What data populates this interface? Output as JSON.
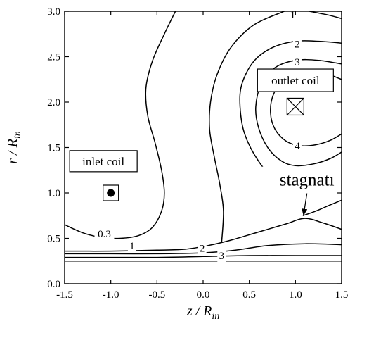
{
  "chart_data": {
    "type": "contour",
    "title": "",
    "xlabel": "z / R",
    "xlabel_sub": "in",
    "ylabel": "r / R",
    "ylabel_sub": "in",
    "xlim": [
      -1.5,
      1.5
    ],
    "ylim": [
      0.0,
      3.0
    ],
    "x_ticks": [
      -1.5,
      -1.0,
      -0.5,
      0.0,
      0.5,
      1.0,
      1.5
    ],
    "x_tick_labels": [
      "-1.5",
      "-1.0",
      "-0.5",
      "0.0",
      "0.5",
      "1.0",
      "1.5"
    ],
    "y_ticks": [
      0.0,
      0.5,
      1.0,
      1.5,
      2.0,
      2.5,
      3.0
    ],
    "y_tick_labels": [
      "0.0",
      "0.5",
      "1.0",
      "1.5",
      "2.0",
      "2.5",
      "3.0"
    ],
    "grid": false,
    "contours": [
      {
        "level": "0.3",
        "points": [
          [
            -1.5,
            0.65
          ],
          [
            -1.3,
            0.56
          ],
          [
            -1.1,
            0.51
          ],
          [
            -0.9,
            0.5
          ],
          [
            -0.7,
            0.53
          ],
          [
            -0.55,
            0.62
          ],
          [
            -0.45,
            0.8
          ],
          [
            -0.42,
            1.0
          ],
          [
            -0.45,
            1.25
          ],
          [
            -0.52,
            1.55
          ],
          [
            -0.6,
            1.85
          ],
          [
            -0.62,
            2.15
          ],
          [
            -0.55,
            2.45
          ],
          [
            -0.42,
            2.75
          ],
          [
            -0.3,
            3.0
          ]
        ]
      },
      {
        "level": "1",
        "points": [
          [
            -1.5,
            0.36
          ],
          [
            -1.0,
            0.36
          ],
          [
            -0.5,
            0.37
          ],
          [
            -0.2,
            0.38
          ],
          [
            0.05,
            0.42
          ],
          [
            0.3,
            0.48
          ],
          [
            0.6,
            0.57
          ],
          [
            0.9,
            0.66
          ],
          [
            1.1,
            0.72
          ],
          [
            1.3,
            0.67
          ],
          [
            1.5,
            0.6
          ]
        ]
      },
      {
        "level": "1",
        "points": [
          [
            0.2,
            0.45
          ],
          [
            0.22,
            0.8
          ],
          [
            0.18,
            1.1
          ],
          [
            0.12,
            1.4
          ],
          [
            0.07,
            1.7
          ],
          [
            0.08,
            2.0
          ],
          [
            0.15,
            2.3
          ],
          [
            0.3,
            2.6
          ],
          [
            0.55,
            2.85
          ],
          [
            0.88,
            3.0
          ]
        ]
      },
      {
        "level": "1",
        "points": [
          [
            1.08,
            0.75
          ],
          [
            1.22,
            0.8
          ],
          [
            1.38,
            0.87
          ],
          [
            1.5,
            0.92
          ]
        ]
      },
      {
        "level": "1",
        "points": [
          [
            1.15,
            3.0
          ],
          [
            1.35,
            2.96
          ],
          [
            1.5,
            2.92
          ]
        ]
      },
      {
        "level": "2",
        "points": [
          [
            -1.5,
            0.33
          ],
          [
            -1.0,
            0.33
          ],
          [
            -0.5,
            0.33
          ],
          [
            0.0,
            0.34
          ],
          [
            0.35,
            0.37
          ],
          [
            0.7,
            0.42
          ],
          [
            1.1,
            0.44
          ],
          [
            1.5,
            0.43
          ]
        ]
      },
      {
        "level": "2",
        "points": [
          [
            1.5,
            2.65
          ],
          [
            1.25,
            2.67
          ],
          [
            1.0,
            2.67
          ],
          [
            0.75,
            2.6
          ],
          [
            0.55,
            2.45
          ],
          [
            0.42,
            2.2
          ],
          [
            0.4,
            1.95
          ],
          [
            0.45,
            1.65
          ],
          [
            0.6,
            1.35
          ],
          [
            0.8,
            1.12
          ],
          [
            1.0,
            1.03
          ],
          [
            1.2,
            1.03
          ],
          [
            1.38,
            1.08
          ],
          [
            1.5,
            1.15
          ]
        ]
      },
      {
        "level": "3",
        "points": [
          [
            -1.5,
            0.29
          ],
          [
            -0.5,
            0.29
          ],
          [
            0.0,
            0.3
          ],
          [
            0.5,
            0.31
          ],
          [
            1.0,
            0.31
          ],
          [
            1.5,
            0.31
          ]
        ]
      },
      {
        "level": "3",
        "points": [
          [
            1.5,
            2.42
          ],
          [
            1.25,
            2.46
          ],
          [
            1.0,
            2.46
          ],
          [
            0.78,
            2.38
          ],
          [
            0.63,
            2.2
          ],
          [
            0.57,
            1.95
          ],
          [
            0.6,
            1.72
          ],
          [
            0.7,
            1.5
          ],
          [
            0.85,
            1.35
          ],
          [
            1.0,
            1.3
          ],
          [
            1.2,
            1.32
          ],
          [
            1.38,
            1.38
          ],
          [
            1.5,
            1.45
          ]
        ]
      },
      {
        "level": "4",
        "points": [
          [
            1.5,
            2.25
          ],
          [
            1.3,
            2.32
          ],
          [
            1.05,
            2.33
          ],
          [
            0.87,
            2.24
          ],
          [
            0.76,
            2.08
          ],
          [
            0.73,
            1.88
          ],
          [
            0.78,
            1.7
          ],
          [
            0.9,
            1.57
          ],
          [
            1.05,
            1.52
          ],
          [
            1.22,
            1.53
          ],
          [
            1.38,
            1.58
          ],
          [
            1.5,
            1.65
          ]
        ]
      },
      {
        "level": "",
        "points": [
          [
            -1.5,
            0.25
          ],
          [
            -0.5,
            0.25
          ],
          [
            0.5,
            0.25
          ],
          [
            1.5,
            0.25
          ]
        ]
      }
    ],
    "contour_labels": [
      {
        "text": "1",
        "x": 0.97,
        "y": 2.96
      },
      {
        "text": "2",
        "x": 1.02,
        "y": 2.64
      },
      {
        "text": "3",
        "x": 1.02,
        "y": 2.44
      },
      {
        "text": "4",
        "x": 1.02,
        "y": 1.52
      },
      {
        "text": "0.3",
        "x": -1.07,
        "y": 0.55
      },
      {
        "text": "1",
        "x": -0.77,
        "y": 0.42
      },
      {
        "text": "2",
        "x": -0.01,
        "y": 0.39
      },
      {
        "text": "3",
        "x": 0.2,
        "y": 0.31
      }
    ],
    "annotations": {
      "inlet": {
        "label": "inlet coil",
        "coil_x": -1.0,
        "coil_y": 1.0,
        "label_x": -1.08,
        "label_y": 1.35
      },
      "outlet": {
        "label": "outlet coil",
        "coil_x": 1.0,
        "coil_y": 1.95,
        "label_x": 1.0,
        "label_y": 2.24
      },
      "stagnation": {
        "label": "stagnatı",
        "point_x": 1.08,
        "point_y": 0.74,
        "text_x": 1.17,
        "text_y": 1.15
      }
    }
  }
}
